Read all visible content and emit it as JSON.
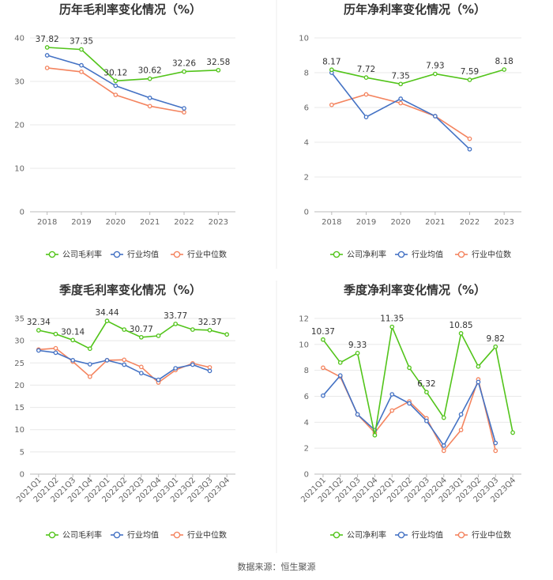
{
  "source": "数据来源：恒生聚源",
  "chart_data": [
    {
      "type": "line",
      "title": "历年毛利率变化情况（%）",
      "categories": [
        "2018",
        "2019",
        "2020",
        "2021",
        "2022",
        "2023"
      ],
      "ylim": [
        0,
        40
      ],
      "yticks": [
        0,
        10,
        20,
        30,
        40
      ],
      "grid": true,
      "legend": "bottom",
      "series": [
        {
          "name": "公司毛利率",
          "color": "#52c41a",
          "values": [
            37.82,
            37.35,
            30.12,
            30.62,
            32.26,
            32.58
          ],
          "labels": [
            "37.82",
            "37.35",
            "30.12",
            "30.62",
            "32.26",
            "32.58"
          ]
        },
        {
          "name": "行业均值",
          "color": "#4472c4",
          "values": [
            36.0,
            33.7,
            29.0,
            26.2,
            23.8,
            null
          ]
        },
        {
          "name": "行业中位数",
          "color": "#f4845f",
          "values": [
            33.1,
            32.2,
            26.9,
            24.3,
            22.9,
            null
          ]
        }
      ]
    },
    {
      "type": "line",
      "title": "历年净利率变化情况（%）",
      "categories": [
        "2018",
        "2019",
        "2020",
        "2021",
        "2022",
        "2023"
      ],
      "ylim": [
        0,
        10
      ],
      "yticks": [
        0,
        2,
        4,
        6,
        8,
        10
      ],
      "grid": true,
      "legend": "bottom",
      "series": [
        {
          "name": "公司净利率",
          "color": "#52c41a",
          "values": [
            8.17,
            7.72,
            7.35,
            7.93,
            7.59,
            8.18
          ],
          "labels": [
            "8.17",
            "7.72",
            "7.35",
            "7.93",
            "7.59",
            "8.18"
          ]
        },
        {
          "name": "行业均值",
          "color": "#4472c4",
          "values": [
            8.0,
            5.45,
            6.5,
            5.5,
            3.6,
            null
          ]
        },
        {
          "name": "行业中位数",
          "color": "#f4845f",
          "values": [
            6.15,
            6.75,
            6.25,
            5.5,
            4.2,
            null
          ]
        }
      ]
    },
    {
      "type": "line",
      "title": "季度毛利率变化情况（%）",
      "categories": [
        "2021Q1",
        "2021Q2",
        "2021Q3",
        "2021Q4",
        "2022Q1",
        "2022Q2",
        "2022Q3",
        "2022Q4",
        "2023Q1",
        "2023Q2",
        "2023Q3",
        "2023Q4"
      ],
      "ylim": [
        0,
        35
      ],
      "yticks": [
        0,
        5,
        10,
        15,
        20,
        25,
        30,
        35
      ],
      "grid": true,
      "legend": "bottom",
      "series": [
        {
          "name": "公司毛利率",
          "color": "#52c41a",
          "values": [
            32.34,
            31.5,
            30.14,
            28.2,
            34.44,
            32.5,
            30.77,
            31.1,
            33.77,
            32.5,
            32.37,
            31.4
          ],
          "labels": [
            "32.34",
            "",
            "30.14",
            "",
            "34.44",
            "",
            "30.77",
            "",
            "33.77",
            "",
            "32.37",
            ""
          ]
        },
        {
          "name": "行业均值",
          "color": "#4472c4",
          "values": [
            27.8,
            27.3,
            25.6,
            24.7,
            25.6,
            24.6,
            22.7,
            21.2,
            23.8,
            24.6,
            23.2,
            null
          ]
        },
        {
          "name": "行业中位数",
          "color": "#f4845f",
          "values": [
            28.0,
            28.3,
            25.3,
            21.9,
            25.6,
            25.7,
            24.1,
            20.6,
            23.4,
            24.9,
            24.0,
            null
          ]
        }
      ]
    },
    {
      "type": "line",
      "title": "季度净利率变化情况（%）",
      "categories": [
        "2021Q1",
        "2021Q2",
        "2021Q3",
        "2021Q4",
        "2022Q1",
        "2022Q2",
        "2022Q3",
        "2022Q4",
        "2023Q1",
        "2023Q2",
        "2023Q3",
        "2023Q4"
      ],
      "ylim": [
        0,
        12
      ],
      "yticks": [
        0,
        2,
        4,
        6,
        8,
        10,
        12
      ],
      "grid": true,
      "legend": "bottom",
      "series": [
        {
          "name": "公司净利率",
          "color": "#52c41a",
          "values": [
            10.37,
            8.6,
            9.33,
            3.0,
            11.35,
            8.2,
            6.32,
            4.35,
            10.85,
            8.3,
            9.82,
            3.2
          ],
          "labels": [
            "10.37",
            "",
            "9.33",
            "",
            "11.35",
            "",
            "6.32",
            "",
            "10.85",
            "",
            "9.82",
            ""
          ]
        },
        {
          "name": "行业均值",
          "color": "#4472c4",
          "values": [
            6.05,
            7.6,
            4.6,
            3.4,
            6.15,
            5.45,
            4.1,
            2.2,
            4.6,
            7.1,
            2.4,
            null
          ]
        },
        {
          "name": "行业中位数",
          "color": "#f4845f",
          "values": [
            8.2,
            7.5,
            4.6,
            3.2,
            4.9,
            5.6,
            4.3,
            1.8,
            3.4,
            7.3,
            1.8,
            null
          ]
        }
      ]
    }
  ]
}
